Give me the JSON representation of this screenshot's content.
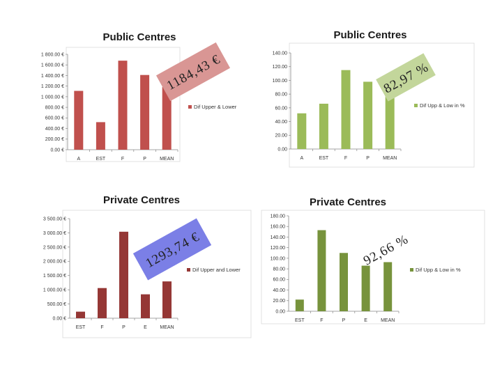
{
  "chart_data": [
    {
      "type": "bar",
      "title": "Public Centres",
      "categories": [
        "A",
        "EST",
        "F",
        "P",
        "MEAN"
      ],
      "series": [
        {
          "name": "Dif Upper & Lower",
          "values": [
            1110,
            520,
            1680,
            1410,
            1184.43
          ]
        }
      ],
      "ylim": [
        0,
        1800
      ],
      "yticks": [
        "0.00 €",
        "200.00 €",
        "400.00 €",
        "600.00 €",
        "800.00 €",
        "1 000.00 €",
        "1 200.00 €",
        "1 400.00 €",
        "1 600.00 €",
        "1 800.00 €"
      ],
      "legend_position": "right",
      "color": "#c0504d",
      "annotation": "1184,43 €",
      "annotation_color": "#d99694"
    },
    {
      "type": "bar",
      "title": "Public Centres",
      "categories": [
        "A",
        "EST",
        "F",
        "P",
        "MEAN"
      ],
      "series": [
        {
          "name": "Dif Upp & Low in %",
          "values": [
            52,
            66,
            115,
            98,
            82.97
          ]
        }
      ],
      "ylim": [
        0,
        140
      ],
      "yticks": [
        "0.00",
        "20.00",
        "40.00",
        "60.00",
        "80.00",
        "100.00",
        "120.00",
        "140.00"
      ],
      "legend_position": "right",
      "color": "#9bbb59",
      "annotation": "82,97 %",
      "annotation_color": "#c3d69b"
    },
    {
      "type": "bar",
      "title": "Private Centres",
      "categories": [
        "EST",
        "F",
        "P",
        "E",
        "MEAN"
      ],
      "series": [
        {
          "name": "Dif Upper and Lower",
          "values": [
            230,
            1060,
            3040,
            840,
            1293.74
          ]
        }
      ],
      "ylim": [
        0,
        3500
      ],
      "yticks": [
        "0.00 €",
        "500.00 €",
        "1 000.00 €",
        "1 500.00 €",
        "2 000.00 €",
        "2 500.00 €",
        "3 000.00 €",
        "3 500.00 €"
      ],
      "legend_position": "right",
      "color": "#953735",
      "annotation": "1293,74 €",
      "annotation_color": "#7b7fe6"
    },
    {
      "type": "bar",
      "title": "Private Centres",
      "categories": [
        "EST",
        "F",
        "P",
        "E",
        "MEAN"
      ],
      "series": [
        {
          "name": "Dif Upp & Low in %",
          "values": [
            22,
            153,
            110,
            86,
            92.66
          ]
        }
      ],
      "ylim": [
        0,
        180
      ],
      "yticks": [
        "0.00",
        "20.00",
        "40.00",
        "60.00",
        "80.00",
        "100.00",
        "120.00",
        "140.00",
        "160.00",
        "180.00"
      ],
      "legend_position": "right",
      "color": "#77933c",
      "annotation": "92,66 %",
      "annotation_color": ""
    }
  ]
}
